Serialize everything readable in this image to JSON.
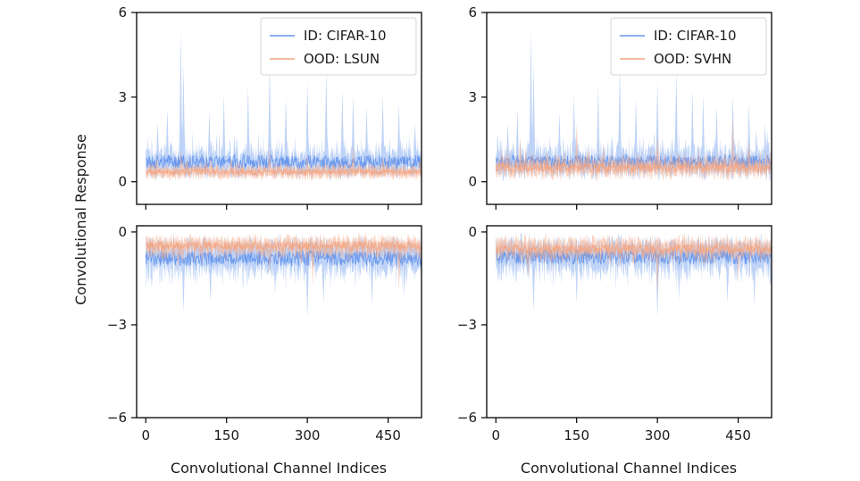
{
  "figure": {
    "ylabel": "Convolutional Response",
    "xlabel": "Convolutional Channel Indices"
  },
  "colors": {
    "id_series": "#6495ED",
    "ood_series": "#F4A582",
    "axes": "#000000",
    "legend_border": "#d6d6d6"
  },
  "chart_data": [
    {
      "type": "area",
      "panel": "top-left",
      "xlim": [
        -17,
        512
      ],
      "ylim": [
        -0.8,
        6
      ],
      "xticks": [
        0,
        150,
        300,
        450
      ],
      "yticks": [
        0,
        3,
        6
      ],
      "show_xtick_labels": false,
      "grid": false,
      "legend": {
        "position": "top-right",
        "entries": [
          "ID: CIFAR-10",
          "OOD: LSUN"
        ]
      },
      "series": [
        {
          "name": "ID: CIFAR-10",
          "color": "#6495ED",
          "channels": 512,
          "mean_level": 0.7,
          "spread": 0.5,
          "peak_max": 5.4,
          "peaks": [
            [
              22,
              2.1
            ],
            [
              40,
              2.6
            ],
            [
              65,
              5.4
            ],
            [
              70,
              4.2
            ],
            [
              118,
              2.5
            ],
            [
              145,
              3.1
            ],
            [
              190,
              3.4
            ],
            [
              230,
              4.3
            ],
            [
              260,
              3.0
            ],
            [
              300,
              3.6
            ],
            [
              335,
              4.0
            ],
            [
              365,
              3.3
            ],
            [
              385,
              3.1
            ],
            [
              410,
              2.7
            ],
            [
              440,
              3.1
            ],
            [
              470,
              2.8
            ],
            [
              500,
              2.1
            ]
          ]
        },
        {
          "name": "OOD: LSUN",
          "color": "#F4A582",
          "channels": 512,
          "mean_level": 0.35,
          "spread": 0.22,
          "peak_max": 1.3,
          "peaks": [
            [
              20,
              0.9
            ],
            [
              65,
              1.1
            ],
            [
              120,
              0.9
            ],
            [
              230,
              1.2
            ],
            [
              300,
              1.0
            ],
            [
              385,
              1.3
            ],
            [
              440,
              0.9
            ]
          ]
        }
      ]
    },
    {
      "type": "area",
      "panel": "top-right",
      "xlim": [
        -17,
        512
      ],
      "ylim": [
        -0.8,
        6
      ],
      "xticks": [
        0,
        150,
        300,
        450
      ],
      "yticks": [
        0,
        3,
        6
      ],
      "show_xtick_labels": false,
      "grid": false,
      "legend": {
        "position": "top-right",
        "entries": [
          "ID: CIFAR-10",
          "OOD: SVHN"
        ]
      },
      "series": [
        {
          "name": "ID: CIFAR-10",
          "color": "#6495ED",
          "channels": 512,
          "mean_level": 0.7,
          "spread": 0.5,
          "peak_max": 5.4,
          "peaks": [
            [
              22,
              2.1
            ],
            [
              40,
              2.6
            ],
            [
              65,
              5.4
            ],
            [
              70,
              4.2
            ],
            [
              118,
              2.5
            ],
            [
              145,
              3.1
            ],
            [
              190,
              3.4
            ],
            [
              230,
              4.3
            ],
            [
              260,
              3.0
            ],
            [
              300,
              3.6
            ],
            [
              335,
              4.0
            ],
            [
              365,
              3.3
            ],
            [
              385,
              3.1
            ],
            [
              410,
              2.7
            ],
            [
              440,
              3.1
            ],
            [
              470,
              2.8
            ],
            [
              500,
              2.1
            ]
          ]
        },
        {
          "name": "OOD: SVHN",
          "color": "#F4A582",
          "channels": 512,
          "mean_level": 0.5,
          "spread": 0.35,
          "peak_max": 2.3,
          "peaks": [
            [
              45,
              1.6
            ],
            [
              150,
              2.1
            ],
            [
              200,
              1.4
            ],
            [
              300,
              1.7
            ],
            [
              440,
              2.3
            ],
            [
              470,
              1.5
            ]
          ]
        }
      ]
    },
    {
      "type": "area",
      "panel": "bottom-left",
      "xlim": [
        -17,
        512
      ],
      "ylim": [
        -6,
        0.2
      ],
      "xticks": [
        0,
        150,
        300,
        450
      ],
      "yticks": [
        0,
        -3,
        -6
      ],
      "show_xtick_labels": true,
      "grid": false,
      "series": [
        {
          "name": "ID: CIFAR-10",
          "color": "#6495ED",
          "channels": 512,
          "mean_level": -0.85,
          "spread": 0.5,
          "peak_max": -2.8,
          "peaks": [
            [
              70,
              -2.6
            ],
            [
              120,
              -2.2
            ],
            [
              240,
              -2.0
            ],
            [
              300,
              -2.8
            ],
            [
              330,
              -2.3
            ],
            [
              420,
              -2.4
            ],
            [
              480,
              -2.1
            ]
          ]
        },
        {
          "name": "OOD: LSUN",
          "color": "#F4A582",
          "channels": 512,
          "mean_level": -0.45,
          "spread": 0.3,
          "peak_max": -1.9,
          "peaks": [
            [
              60,
              -1.2
            ],
            [
              230,
              -1.4
            ],
            [
              310,
              -1.8
            ],
            [
              470,
              -1.9
            ]
          ]
        }
      ]
    },
    {
      "type": "area",
      "panel": "bottom-right",
      "xlim": [
        -17,
        512
      ],
      "ylim": [
        -6,
        0.2
      ],
      "xticks": [
        0,
        150,
        300,
        450
      ],
      "yticks": [
        0,
        -3,
        -6
      ],
      "show_xtick_labels": true,
      "grid": false,
      "series": [
        {
          "name": "ID: CIFAR-10",
          "color": "#6495ED",
          "channels": 512,
          "mean_level": -0.8,
          "spread": 0.5,
          "peak_max": -2.8,
          "peaks": [
            [
              70,
              -2.6
            ],
            [
              150,
              -2.3
            ],
            [
              300,
              -2.8
            ],
            [
              340,
              -2.2
            ],
            [
              430,
              -2.3
            ],
            [
              480,
              -2.4
            ]
          ]
        },
        {
          "name": "OOD: SVHN",
          "color": "#F4A582",
          "channels": 512,
          "mean_level": -0.55,
          "spread": 0.3,
          "peak_max": -2.1,
          "peaks": [
            [
              60,
              -1.5
            ],
            [
              300,
              -2.1
            ],
            [
              450,
              -1.6
            ]
          ]
        }
      ]
    }
  ]
}
